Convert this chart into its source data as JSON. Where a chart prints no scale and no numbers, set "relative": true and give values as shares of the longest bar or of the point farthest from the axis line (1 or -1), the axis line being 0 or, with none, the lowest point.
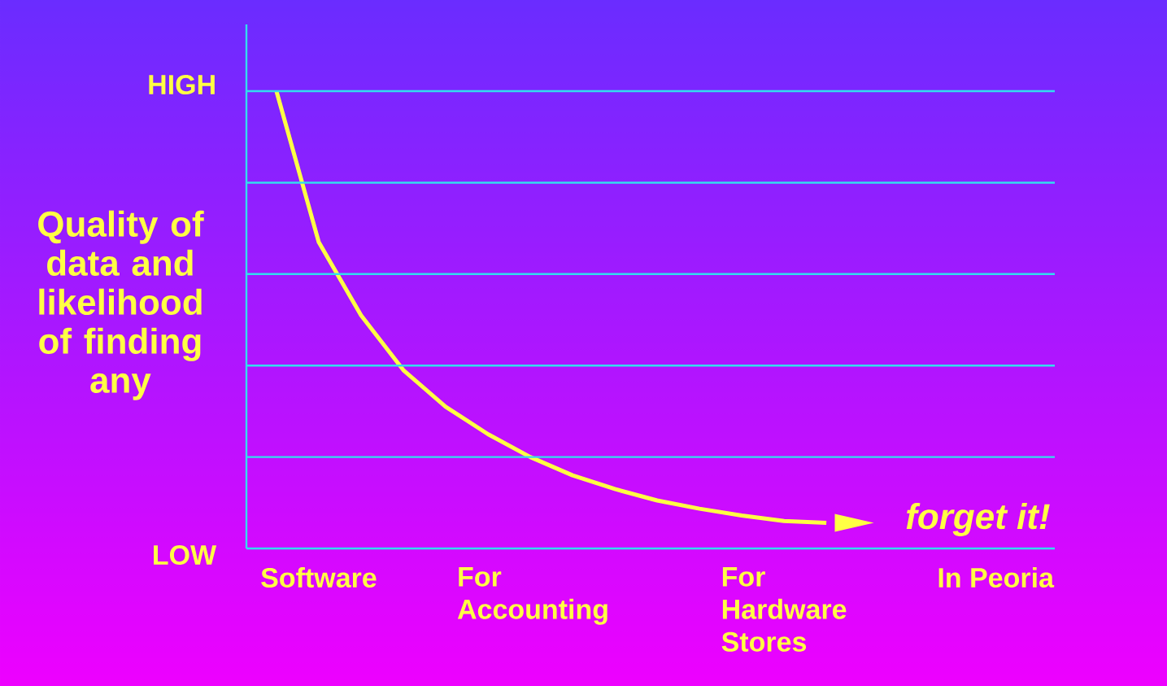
{
  "chart_data": {
    "type": "line",
    "relative": true,
    "ylabel": "Quality of data and likelihood of finding any",
    "annotations": [
      "HIGH",
      "LOW",
      "forget it!"
    ],
    "categories": [
      null,
      "Software",
      null,
      null,
      null,
      null,
      "For Accounting",
      null,
      null,
      null,
      null,
      null,
      "For Hardware Stores",
      null,
      null,
      null,
      null,
      "In Peoria"
    ],
    "marker": "none",
    "line_style": "solid",
    "ref_lines": [
      {
        "axis": "y",
        "value": 0.2,
        "color": "#33ddee"
      },
      {
        "axis": "y",
        "value": 0.4,
        "color": "#33ddee"
      },
      {
        "axis": "y",
        "value": 0.6,
        "color": "#33ddee"
      },
      {
        "axis": "y",
        "value": 0.8,
        "color": "#33ddee"
      },
      {
        "axis": "y",
        "value": 1,
        "color": "#33ddee"
      }
    ],
    "series": [
      {
        "color": "#ffff44",
        "values": [
          1,
          0.67,
          0.51,
          0.39,
          0.31,
          0.25,
          0.2,
          0.16,
          0.13,
          0.105,
          0.087,
          0.072,
          0.06,
          0.056,
          null,
          null,
          null,
          null
        ]
      }
    ]
  }
}
